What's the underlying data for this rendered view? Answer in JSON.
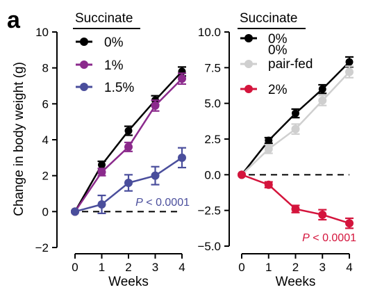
{
  "panel_label": "a",
  "chart_data": [
    {
      "type": "line",
      "legend_title": "Succinate",
      "xlabel": "Weeks",
      "ylabel": "Change in body weight (g)",
      "xlim": [
        0,
        4
      ],
      "ylim": [
        -2,
        10
      ],
      "x_ticks": [
        0,
        1,
        2,
        3,
        4
      ],
      "y_ticks": [
        -2,
        0,
        2,
        4,
        6,
        8,
        10
      ],
      "y_tick_labels": [
        "−2",
        "0",
        "2",
        "4",
        "6",
        "8",
        "10"
      ],
      "reference_line_y": 0,
      "grid": false,
      "legend_position": "top-left",
      "x": [
        0,
        1,
        2,
        3,
        4
      ],
      "series": [
        {
          "name": "0%",
          "color": "#000000",
          "values": [
            0,
            2.6,
            4.5,
            6.2,
            7.8
          ],
          "errors": [
            0,
            0.2,
            0.25,
            0.25,
            0.25
          ]
        },
        {
          "name": "1%",
          "color": "#8b2a8c",
          "values": [
            0,
            2.2,
            3.6,
            5.9,
            7.4
          ],
          "errors": [
            0,
            0.2,
            0.25,
            0.3,
            0.3
          ]
        },
        {
          "name": "1.5%",
          "color": "#4a4e9c",
          "values": [
            0,
            0.4,
            1.6,
            2.0,
            3.0
          ],
          "errors": [
            0,
            0.5,
            0.45,
            0.5,
            0.55
          ]
        }
      ],
      "annotation": {
        "italic": "P",
        "rest": " < 0.0001",
        "color": "#4a4e9c"
      }
    },
    {
      "type": "line",
      "legend_title": "Succinate",
      "xlabel": "Weeks",
      "ylabel": "",
      "xlim": [
        0,
        4
      ],
      "ylim": [
        -5,
        10
      ],
      "x_ticks": [
        0,
        1,
        2,
        3,
        4
      ],
      "y_ticks": [
        -5,
        -2.5,
        0,
        2.5,
        5,
        7.5,
        10
      ],
      "y_tick_labels": [
        "−5.0",
        "−2.5",
        "0.0",
        "2.5",
        "5.0",
        "7.5",
        "10.0"
      ],
      "reference_line_y": 0,
      "grid": false,
      "legend_position": "top-left",
      "x": [
        0,
        1,
        2,
        3,
        4
      ],
      "series": [
        {
          "name": "0%",
          "color": "#000000",
          "values": [
            0,
            2.4,
            4.3,
            6.0,
            7.9
          ],
          "errors": [
            0,
            0.2,
            0.3,
            0.3,
            0.35
          ]
        },
        {
          "name_lines": [
            "0%",
            "pair-fed"
          ],
          "color": "#cfcfcf",
          "values": [
            0,
            1.8,
            3.2,
            5.2,
            7.2
          ],
          "errors": [
            0,
            0.3,
            0.35,
            0.35,
            0.4
          ]
        },
        {
          "name": "2%",
          "color": "#d4143c",
          "values": [
            0,
            -0.7,
            -2.4,
            -2.8,
            -3.4
          ],
          "errors": [
            0,
            0.2,
            0.25,
            0.35,
            0.35
          ]
        }
      ],
      "annotation": {
        "italic": "P",
        "rest": " < 0.0001",
        "color": "#d4143c"
      }
    }
  ]
}
